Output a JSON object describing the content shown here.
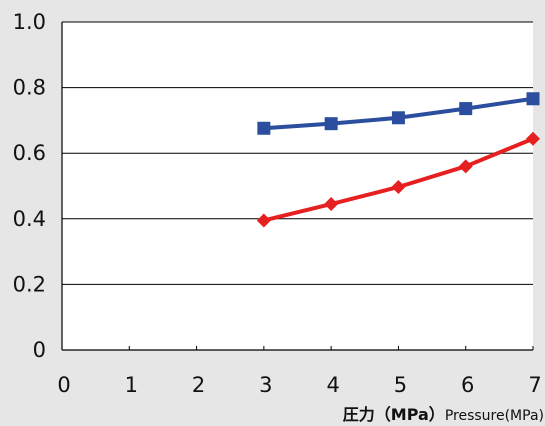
{
  "chart_data": {
    "type": "line",
    "title": "",
    "xlabel": "",
    "ylabel": "",
    "xlabel_parts": {
      "main": "圧力（MPa）",
      "sub": "Pressure(MPa)"
    },
    "xlim": [
      0,
      7
    ],
    "ylim": [
      0,
      1.0
    ],
    "x_ticks": [
      "0",
      "1",
      "2",
      "3",
      "4",
      "5",
      "6",
      "7"
    ],
    "y_ticks": [
      "0",
      "0.2",
      "0.4",
      "0.6",
      "0.8",
      "1.0"
    ],
    "y_tick_values": [
      0,
      0.2,
      0.4,
      0.6,
      0.8,
      1.0
    ],
    "x_tick_values": [
      0,
      1,
      2,
      3,
      4,
      5,
      6,
      7
    ],
    "grid": {
      "horizontal": true,
      "vertical": false
    },
    "series": [
      {
        "marker": "square",
        "color": "#2b4f9e",
        "x": [
          3,
          4,
          5,
          6,
          7
        ],
        "y": [
          0.676,
          0.69,
          0.708,
          0.736,
          0.766
        ]
      },
      {
        "marker": "diamond",
        "color": "#e62020",
        "x": [
          3,
          4,
          5,
          6,
          7
        ],
        "y": [
          0.395,
          0.445,
          0.497,
          0.56,
          0.644
        ]
      }
    ]
  },
  "colors": {
    "background": "#e6e6e6",
    "plot_area": "#ffffff",
    "grid": "#000000"
  }
}
